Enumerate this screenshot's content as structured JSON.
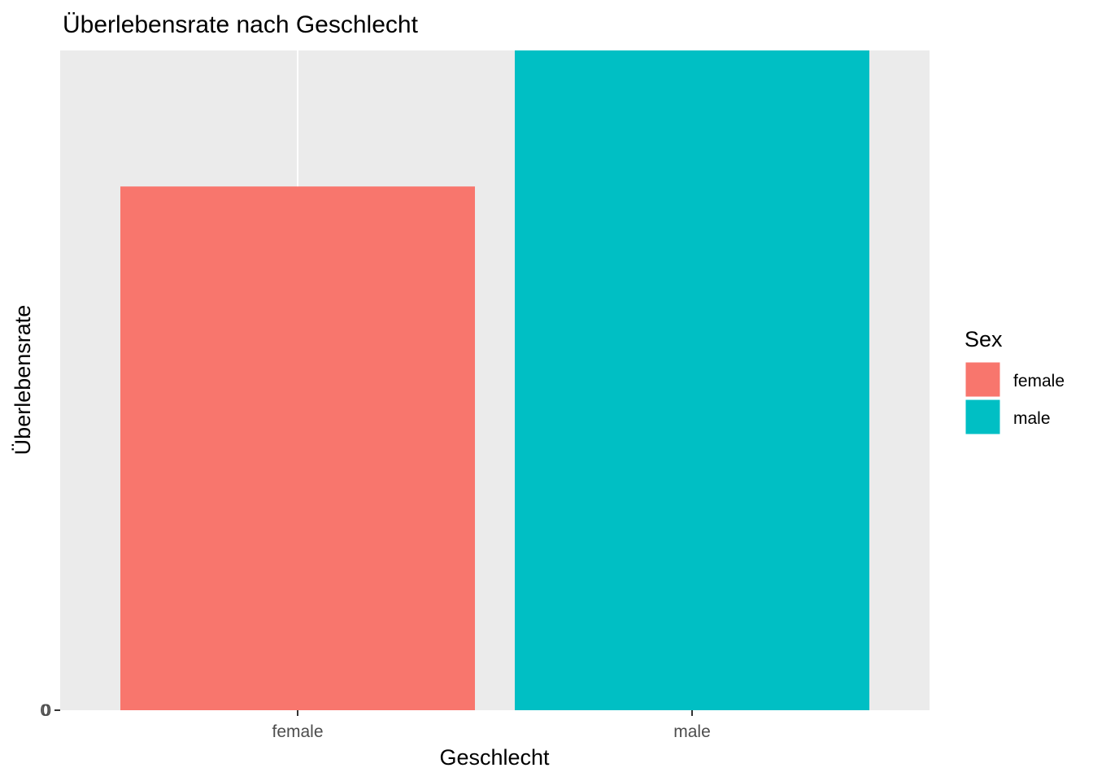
{
  "chart_data": {
    "type": "bar",
    "title": "Überlebensrate nach Geschlecht",
    "xlabel": "Geschlecht",
    "ylabel": "Überlebensrate",
    "categories": [
      "female",
      "male"
    ],
    "values": [
      0.7938,
      1.0
    ],
    "y_tick_labels": [
      "0",
      "0"
    ],
    "colors": [
      "#F8766D",
      "#00BFC4"
    ],
    "panel_background": "#EBEBEB",
    "grid": true,
    "legend": {
      "title": "Sex",
      "position": "right",
      "entries": [
        {
          "label": "female",
          "color": "#F8766D"
        },
        {
          "label": "male",
          "color": "#00BFC4"
        }
      ]
    }
  }
}
